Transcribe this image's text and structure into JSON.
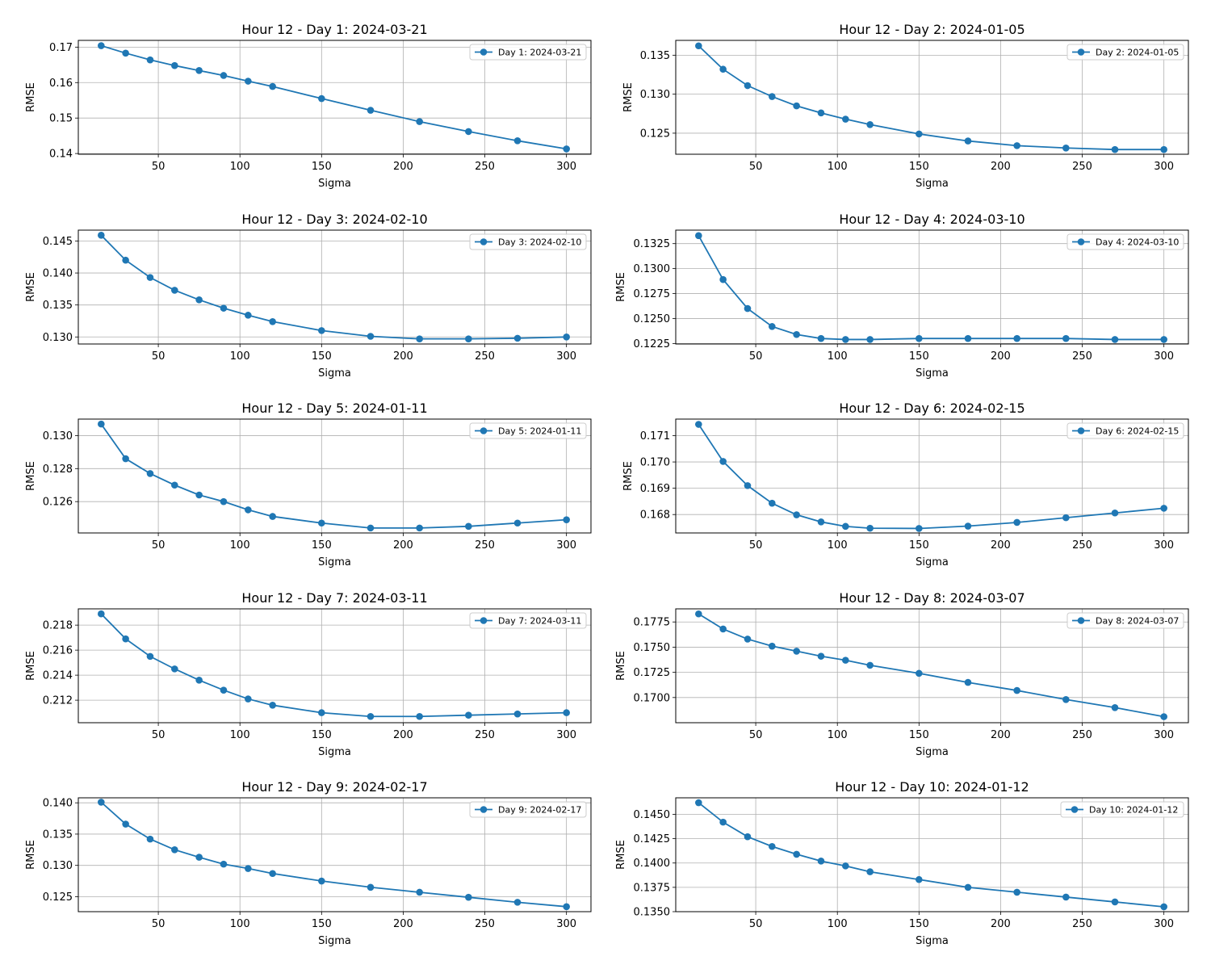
{
  "figure": {
    "line_color": "#1f77b4",
    "grid_color": "#b0b0b0",
    "layout": "5 rows x 2 columns"
  },
  "chart_data": [
    {
      "type": "line",
      "title": "Hour 12 - Day 1: 2024-03-21",
      "xlabel": "Sigma",
      "ylabel": "RMSE",
      "grid": true,
      "legend_position": "top-right",
      "xlim": [
        1,
        315
      ],
      "xticks": [
        50,
        100,
        150,
        200,
        250,
        300
      ],
      "ylim": [
        0.1398,
        0.1719
      ],
      "yticks": [
        0.14,
        0.15,
        0.16,
        0.17
      ],
      "ytick_labels": [
        "0.14",
        "0.15",
        "0.16",
        "0.17"
      ],
      "x": [
        15,
        30,
        45,
        60,
        75,
        90,
        105,
        120,
        150,
        180,
        210,
        240,
        270,
        300
      ],
      "series": [
        {
          "name": "Day 1: 2024-03-21",
          "values": [
            0.1704,
            0.1683,
            0.1664,
            0.1648,
            0.1634,
            0.162,
            0.1604,
            0.1589,
            0.1555,
            0.1522,
            0.149,
            0.1462,
            0.1436,
            0.1413
          ]
        }
      ]
    },
    {
      "type": "line",
      "title": "Hour 12 - Day 2: 2024-01-05",
      "xlabel": "Sigma",
      "ylabel": "RMSE",
      "grid": true,
      "legend_position": "top-right",
      "xlim": [
        1,
        315
      ],
      "xticks": [
        50,
        100,
        150,
        200,
        250,
        300
      ],
      "ylim": [
        0.1223,
        0.1369
      ],
      "yticks": [
        0.125,
        0.13,
        0.135
      ],
      "ytick_labels": [
        "0.125",
        "0.130",
        "0.135"
      ],
      "x": [
        15,
        30,
        45,
        60,
        75,
        90,
        105,
        120,
        150,
        180,
        210,
        240,
        270,
        300
      ],
      "series": [
        {
          "name": "Day 2: 2024-01-05",
          "values": [
            0.1362,
            0.1332,
            0.1311,
            0.1297,
            0.1285,
            0.1276,
            0.1268,
            0.1261,
            0.1249,
            0.124,
            0.1234,
            0.1231,
            0.1229,
            0.1229
          ]
        }
      ]
    },
    {
      "type": "line",
      "title": "Hour 12 - Day 3: 2024-02-10",
      "xlabel": "Sigma",
      "ylabel": "RMSE",
      "grid": true,
      "legend_position": "top-right",
      "xlim": [
        1,
        315
      ],
      "xticks": [
        50,
        100,
        150,
        200,
        250,
        300
      ],
      "ylim": [
        0.1289,
        0.1467
      ],
      "yticks": [
        0.13,
        0.135,
        0.14,
        0.145
      ],
      "ytick_labels": [
        "0.130",
        "0.135",
        "0.140",
        "0.145"
      ],
      "x": [
        15,
        30,
        45,
        60,
        75,
        90,
        105,
        120,
        150,
        180,
        210,
        240,
        270,
        300
      ],
      "series": [
        {
          "name": "Day 3: 2024-02-10",
          "values": [
            0.1459,
            0.142,
            0.1393,
            0.1373,
            0.1358,
            0.1345,
            0.1334,
            0.1324,
            0.131,
            0.1301,
            0.1297,
            0.1297,
            0.1298,
            0.13
          ]
        }
      ]
    },
    {
      "type": "line",
      "title": "Hour 12 - Day 4: 2024-03-10",
      "xlabel": "Sigma",
      "ylabel": "RMSE",
      "grid": true,
      "legend_position": "top-right",
      "xlim": [
        1,
        315
      ],
      "xticks": [
        50,
        100,
        150,
        200,
        250,
        300
      ],
      "ylim": [
        0.12245,
        0.13385
      ],
      "yticks": [
        0.1225,
        0.125,
        0.1275,
        0.13,
        0.1325
      ],
      "ytick_labels": [
        "0.1225",
        "0.1250",
        "0.1275",
        "0.1300",
        "0.1325"
      ],
      "x": [
        15,
        30,
        45,
        60,
        75,
        90,
        105,
        120,
        150,
        180,
        210,
        240,
        270,
        300
      ],
      "series": [
        {
          "name": "Day 4: 2024-03-10",
          "values": [
            0.1333,
            0.1289,
            0.126,
            0.1242,
            0.1234,
            0.123,
            0.1229,
            0.1229,
            0.123,
            0.123,
            0.123,
            0.123,
            0.1229,
            0.1229
          ]
        }
      ]
    },
    {
      "type": "line",
      "title": "Hour 12 - Day 5: 2024-01-11",
      "xlabel": "Sigma",
      "ylabel": "RMSE",
      "grid": true,
      "legend_position": "top-right",
      "xlim": [
        1,
        315
      ],
      "xticks": [
        50,
        100,
        150,
        200,
        250,
        300
      ],
      "ylim": [
        0.1241,
        0.131
      ],
      "yticks": [
        0.126,
        0.128,
        0.13
      ],
      "ytick_labels": [
        "0.126",
        "0.128",
        "0.130"
      ],
      "x": [
        15,
        30,
        45,
        60,
        75,
        90,
        105,
        120,
        150,
        180,
        210,
        240,
        270,
        300
      ],
      "series": [
        {
          "name": "Day 5: 2024-01-11",
          "values": [
            0.1307,
            0.1286,
            0.1277,
            0.127,
            0.1264,
            0.126,
            0.1255,
            0.1251,
            0.1247,
            0.1244,
            0.1244,
            0.1245,
            0.1247,
            0.1249
          ]
        }
      ]
    },
    {
      "type": "line",
      "title": "Hour 12 - Day 6: 2024-02-15",
      "xlabel": "Sigma",
      "ylabel": "RMSE",
      "grid": true,
      "legend_position": "top-right",
      "xlim": [
        1,
        315
      ],
      "xticks": [
        50,
        100,
        150,
        200,
        250,
        300
      ],
      "ylim": [
        0.1673,
        0.17163
      ],
      "yticks": [
        0.168,
        0.169,
        0.17,
        0.171
      ],
      "ytick_labels": [
        "0.168",
        "0.169",
        "0.170",
        "0.171"
      ],
      "x": [
        15,
        30,
        45,
        60,
        75,
        90,
        105,
        120,
        150,
        180,
        210,
        240,
        270,
        300
      ],
      "series": [
        {
          "name": "Day 6: 2024-02-15",
          "values": [
            0.17143,
            0.17002,
            0.1691,
            0.16843,
            0.16799,
            0.16772,
            0.16755,
            0.16748,
            0.16747,
            0.16756,
            0.1677,
            0.16788,
            0.16806,
            0.16824
          ]
        }
      ]
    },
    {
      "type": "line",
      "title": "Hour 12 - Day 7: 2024-03-11",
      "xlabel": "Sigma",
      "ylabel": "RMSE",
      "grid": true,
      "legend_position": "top-right",
      "xlim": [
        1,
        315
      ],
      "xticks": [
        50,
        100,
        150,
        200,
        250,
        300
      ],
      "ylim": [
        0.2102,
        0.2193
      ],
      "yticks": [
        0.212,
        0.214,
        0.216,
        0.218
      ],
      "ytick_labels": [
        "0.212",
        "0.214",
        "0.216",
        "0.218"
      ],
      "x": [
        15,
        30,
        45,
        60,
        75,
        90,
        105,
        120,
        150,
        180,
        210,
        240,
        270,
        300
      ],
      "series": [
        {
          "name": "Day 7: 2024-03-11",
          "values": [
            0.2189,
            0.2169,
            0.2155,
            0.2145,
            0.2136,
            0.2128,
            0.2121,
            0.2116,
            0.211,
            0.2107,
            0.2107,
            0.2108,
            0.2109,
            0.211
          ]
        }
      ]
    },
    {
      "type": "line",
      "title": "Hour 12 - Day 8: 2024-03-07",
      "xlabel": "Sigma",
      "ylabel": "RMSE",
      "grid": true,
      "legend_position": "top-right",
      "xlim": [
        1,
        315
      ],
      "xticks": [
        50,
        100,
        150,
        200,
        250,
        300
      ],
      "ylim": [
        0.1675,
        0.1788
      ],
      "yticks": [
        0.17,
        0.1725,
        0.175,
        0.1775
      ],
      "ytick_labels": [
        "0.1700",
        "0.1725",
        "0.1750",
        "0.1775"
      ],
      "x": [
        15,
        30,
        45,
        60,
        75,
        90,
        105,
        120,
        150,
        180,
        210,
        240,
        270,
        300
      ],
      "series": [
        {
          "name": "Day 8: 2024-03-07",
          "values": [
            0.1783,
            0.1768,
            0.1758,
            0.1751,
            0.1746,
            0.1741,
            0.1737,
            0.1732,
            0.1724,
            0.1715,
            0.1707,
            0.1698,
            0.169,
            0.1681
          ]
        }
      ]
    },
    {
      "type": "line",
      "title": "Hour 12 - Day 9: 2024-02-17",
      "xlabel": "Sigma",
      "ylabel": "RMSE",
      "grid": true,
      "legend_position": "top-right",
      "xlim": [
        1,
        315
      ],
      "xticks": [
        50,
        100,
        150,
        200,
        250,
        300
      ],
      "ylim": [
        0.1226,
        0.1408
      ],
      "yticks": [
        0.125,
        0.13,
        0.135,
        0.14
      ],
      "ytick_labels": [
        "0.125",
        "0.130",
        "0.135",
        "0.140"
      ],
      "x": [
        15,
        30,
        45,
        60,
        75,
        90,
        105,
        120,
        150,
        180,
        210,
        240,
        270,
        300
      ],
      "series": [
        {
          "name": "Day 9: 2024-02-17",
          "values": [
            0.1401,
            0.1366,
            0.1342,
            0.1325,
            0.1313,
            0.1302,
            0.1295,
            0.1287,
            0.1275,
            0.1265,
            0.1257,
            0.1249,
            0.1241,
            0.1234
          ]
        }
      ]
    },
    {
      "type": "line",
      "title": "Hour 12 - Day 10: 2024-01-12",
      "xlabel": "Sigma",
      "ylabel": "RMSE",
      "grid": true,
      "legend_position": "top-right",
      "xlim": [
        1,
        315
      ],
      "xticks": [
        50,
        100,
        150,
        200,
        250,
        300
      ],
      "ylim": [
        0.135,
        0.1467
      ],
      "yticks": [
        0.135,
        0.1375,
        0.14,
        0.1425,
        0.145
      ],
      "ytick_labels": [
        "0.1350",
        "0.1375",
        "0.1400",
        "0.1425",
        "0.1450"
      ],
      "x": [
        15,
        30,
        45,
        60,
        75,
        90,
        105,
        120,
        150,
        180,
        210,
        240,
        270,
        300
      ],
      "series": [
        {
          "name": "Day 10: 2024-01-12",
          "values": [
            0.1462,
            0.1442,
            0.1427,
            0.1417,
            0.1409,
            0.1402,
            0.1397,
            0.1391,
            0.1383,
            0.1375,
            0.137,
            0.1365,
            0.136,
            0.1355
          ]
        }
      ]
    }
  ]
}
